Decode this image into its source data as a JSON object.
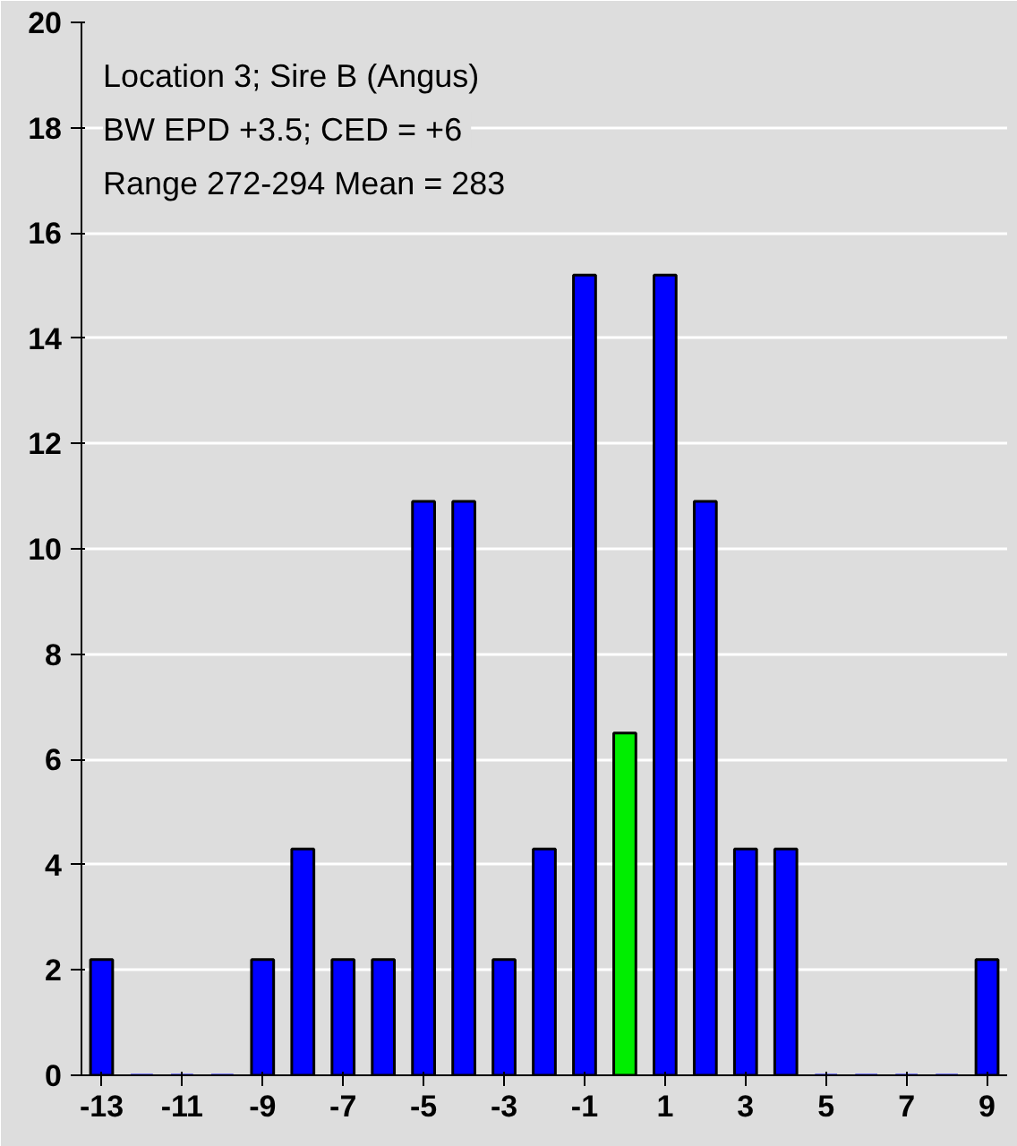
{
  "chart_data": {
    "type": "bar",
    "categories": [
      "-13",
      null,
      "-11",
      null,
      "-9",
      null,
      "-7",
      null,
      "-5",
      null,
      "-3",
      null,
      "-1",
      null,
      "1",
      null,
      "3",
      null,
      "5",
      null,
      "7",
      null,
      "9"
    ],
    "values": [
      2.2,
      0,
      0,
      0,
      2.2,
      4.3,
      2.2,
      2.2,
      10.9,
      10.9,
      2.2,
      4.3,
      15.2,
      6.5,
      15.2,
      10.9,
      4.3,
      4.3,
      0,
      0,
      0,
      0,
      2.2
    ],
    "colors": [
      "#0000ff",
      "#0000ff",
      "#0000ff",
      "#0000ff",
      "#0000ff",
      "#0000ff",
      "#0000ff",
      "#0000ff",
      "#0000ff",
      "#0000ff",
      "#0000ff",
      "#0000ff",
      "#0000ff",
      "#00ee00",
      "#0000ff",
      "#0000ff",
      "#0000ff",
      "#0000ff",
      "#0000ff",
      "#0000ff",
      "#0000ff",
      "#0000ff",
      "#0000ff"
    ],
    "ylim": [
      0,
      20
    ],
    "yticks": [
      0,
      2,
      4,
      6,
      8,
      10,
      12,
      14,
      16,
      18,
      20
    ],
    "grid": "y",
    "annotations": [
      "Location 3; Sire B (Angus)",
      "BW EPD +3.5;  CED = +6",
      "Range 272-294  Mean = 283"
    ]
  }
}
